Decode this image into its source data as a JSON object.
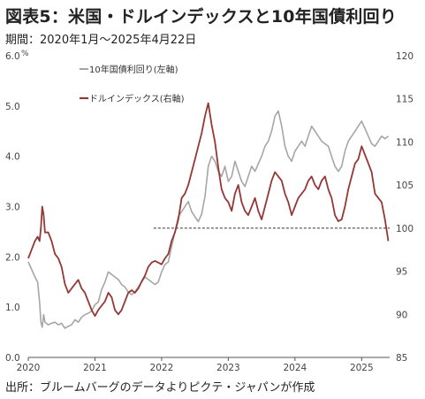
{
  "title": "図表5：米国・ドルインデックスと10年国債利回り",
  "subtitle": "期間：2020年1月～2025年4月22日",
  "source": "出所：ブルームバーグのデータよりピクテ・ジャパンが作成",
  "colors": {
    "yield": "#a6a6a6",
    "dollar": "#953735",
    "ref_line": "#333333",
    "axis": "#555555"
  },
  "chart_data": {
    "type": "line",
    "title": "図表5：米国・ドルインデックスと10年国債利回り",
    "subtitle": "期間：2020年1月～2025年4月22日",
    "left_axis": {
      "unit": "%",
      "ylim": [
        0,
        6
      ],
      "ticks": [
        "0.0",
        "1.0",
        "2.0",
        "3.0",
        "4.0",
        "5.0",
        "6.0"
      ]
    },
    "right_axis": {
      "ylim": [
        85,
        120
      ],
      "ticks": [
        "85",
        "90",
        "95",
        "100",
        "105",
        "110",
        "115",
        "120"
      ]
    },
    "x_axis": {
      "xlim": [
        2020.0,
        2025.42
      ],
      "ticks": [
        "2020",
        "2021",
        "2022",
        "2023",
        "2024",
        "2025"
      ]
    },
    "legend_position": "top-left",
    "reference_line": {
      "axis": "right",
      "value": 100,
      "style": "dashed",
      "x_from": 2021.88
    },
    "series": [
      {
        "name": "10年国債利回り(左軸)",
        "axis": "left",
        "color": "#a6a6a6",
        "x": [
          2020.0,
          2020.05,
          2020.1,
          2020.14,
          2020.17,
          2020.19,
          2020.21,
          2020.23,
          2020.25,
          2020.3,
          2020.35,
          2020.4,
          2020.45,
          2020.5,
          2020.55,
          2020.6,
          2020.65,
          2020.7,
          2020.75,
          2020.8,
          2020.85,
          2020.9,
          2020.95,
          2021.0,
          2021.05,
          2021.1,
          2021.15,
          2021.2,
          2021.25,
          2021.3,
          2021.35,
          2021.4,
          2021.45,
          2021.5,
          2021.55,
          2021.6,
          2021.65,
          2021.7,
          2021.75,
          2021.8,
          2021.85,
          2021.9,
          2021.95,
          2022.0,
          2022.05,
          2022.1,
          2022.15,
          2022.2,
          2022.25,
          2022.3,
          2022.35,
          2022.4,
          2022.45,
          2022.5,
          2022.55,
          2022.6,
          2022.65,
          2022.7,
          2022.75,
          2022.8,
          2022.85,
          2022.9,
          2022.95,
          2023.0,
          2023.05,
          2023.1,
          2023.15,
          2023.2,
          2023.25,
          2023.3,
          2023.35,
          2023.4,
          2023.45,
          2023.5,
          2023.55,
          2023.6,
          2023.65,
          2023.7,
          2023.75,
          2023.8,
          2023.85,
          2023.9,
          2023.95,
          2024.0,
          2024.05,
          2024.1,
          2024.15,
          2024.2,
          2024.25,
          2024.3,
          2024.35,
          2024.4,
          2024.45,
          2024.5,
          2024.55,
          2024.6,
          2024.65,
          2024.7,
          2024.75,
          2024.8,
          2024.85,
          2024.9,
          2024.95,
          2025.0,
          2025.05,
          2025.1,
          2025.15,
          2025.2,
          2025.25,
          2025.3,
          2025.35,
          2025.4
        ],
        "values": [
          1.9,
          1.75,
          1.6,
          1.5,
          1.1,
          0.7,
          0.6,
          0.85,
          0.7,
          0.65,
          0.68,
          0.7,
          0.65,
          0.68,
          0.58,
          0.62,
          0.65,
          0.75,
          0.7,
          0.8,
          0.85,
          0.88,
          0.92,
          1.05,
          1.1,
          1.35,
          1.5,
          1.7,
          1.65,
          1.6,
          1.55,
          1.45,
          1.4,
          1.3,
          1.25,
          1.3,
          1.4,
          1.5,
          1.6,
          1.55,
          1.5,
          1.45,
          1.5,
          1.7,
          1.85,
          1.9,
          2.2,
          2.5,
          2.8,
          2.9,
          3.0,
          3.1,
          2.9,
          2.8,
          2.7,
          2.85,
          3.2,
          3.8,
          4.0,
          3.9,
          3.7,
          3.6,
          3.8,
          3.5,
          3.6,
          3.9,
          3.7,
          3.5,
          3.4,
          3.6,
          3.8,
          3.7,
          3.85,
          4.0,
          4.2,
          4.3,
          4.5,
          4.8,
          4.9,
          4.6,
          4.2,
          4.0,
          3.9,
          4.1,
          4.2,
          4.3,
          4.2,
          4.4,
          4.6,
          4.5,
          4.4,
          4.3,
          4.25,
          4.2,
          4.0,
          3.8,
          3.7,
          3.8,
          4.1,
          4.3,
          4.4,
          4.5,
          4.6,
          4.7,
          4.55,
          4.4,
          4.25,
          4.2,
          4.3,
          4.4,
          4.35,
          4.4
        ]
      },
      {
        "name": "ドルインデックス(右軸)",
        "axis": "right",
        "color": "#953735",
        "x": [
          2020.0,
          2020.05,
          2020.1,
          2020.14,
          2020.17,
          2020.19,
          2020.21,
          2020.23,
          2020.25,
          2020.3,
          2020.35,
          2020.4,
          2020.45,
          2020.5,
          2020.55,
          2020.6,
          2020.65,
          2020.7,
          2020.75,
          2020.8,
          2020.85,
          2020.9,
          2020.95,
          2021.0,
          2021.05,
          2021.1,
          2021.15,
          2021.2,
          2021.25,
          2021.3,
          2021.35,
          2021.4,
          2021.45,
          2021.5,
          2021.55,
          2021.6,
          2021.65,
          2021.7,
          2021.75,
          2021.8,
          2021.85,
          2021.9,
          2021.95,
          2022.0,
          2022.05,
          2022.1,
          2022.15,
          2022.2,
          2022.25,
          2022.3,
          2022.35,
          2022.4,
          2022.45,
          2022.5,
          2022.55,
          2022.6,
          2022.65,
          2022.7,
          2022.75,
          2022.8,
          2022.85,
          2022.9,
          2022.95,
          2023.0,
          2023.05,
          2023.1,
          2023.15,
          2023.2,
          2023.25,
          2023.3,
          2023.35,
          2023.4,
          2023.45,
          2023.5,
          2023.55,
          2023.6,
          2023.65,
          2023.7,
          2023.75,
          2023.8,
          2023.85,
          2023.9,
          2023.95,
          2024.0,
          2024.05,
          2024.1,
          2024.15,
          2024.2,
          2024.25,
          2024.3,
          2024.35,
          2024.4,
          2024.45,
          2024.5,
          2024.55,
          2024.6,
          2024.65,
          2024.7,
          2024.75,
          2024.8,
          2024.85,
          2024.9,
          2024.95,
          2025.0,
          2025.05,
          2025.1,
          2025.15,
          2025.2,
          2025.25,
          2025.3,
          2025.35,
          2025.4
        ],
        "values": [
          96.5,
          97.5,
          98.5,
          99.0,
          98.5,
          100.0,
          102.5,
          101.5,
          99.5,
          99.5,
          98.5,
          97.0,
          96.5,
          95.5,
          93.5,
          92.5,
          93.0,
          93.5,
          94.0,
          93.0,
          92.5,
          91.5,
          90.5,
          89.8,
          90.5,
          91.0,
          91.5,
          92.5,
          92.0,
          90.5,
          90.0,
          90.5,
          91.5,
          92.5,
          92.8,
          92.5,
          93.0,
          93.8,
          94.5,
          95.5,
          96.0,
          96.2,
          96.0,
          95.8,
          96.5,
          97.0,
          98.5,
          99.5,
          101.0,
          103.5,
          104.0,
          105.0,
          106.5,
          108.0,
          109.5,
          111.0,
          113.0,
          114.5,
          112.0,
          110.0,
          107.0,
          104.5,
          103.5,
          103.0,
          102.0,
          104.0,
          105.0,
          103.0,
          102.0,
          101.5,
          102.5,
          103.5,
          102.0,
          101.0,
          102.5,
          104.0,
          105.5,
          106.5,
          106.0,
          105.5,
          104.0,
          103.0,
          101.5,
          102.5,
          103.5,
          104.0,
          104.5,
          105.5,
          106.0,
          105.0,
          104.5,
          105.5,
          106.0,
          104.5,
          103.5,
          101.5,
          100.8,
          101.0,
          102.5,
          104.5,
          106.0,
          107.5,
          108.0,
          109.5,
          108.5,
          107.5,
          106.5,
          104.0,
          103.5,
          103.0,
          101.0,
          98.5
        ]
      }
    ]
  }
}
